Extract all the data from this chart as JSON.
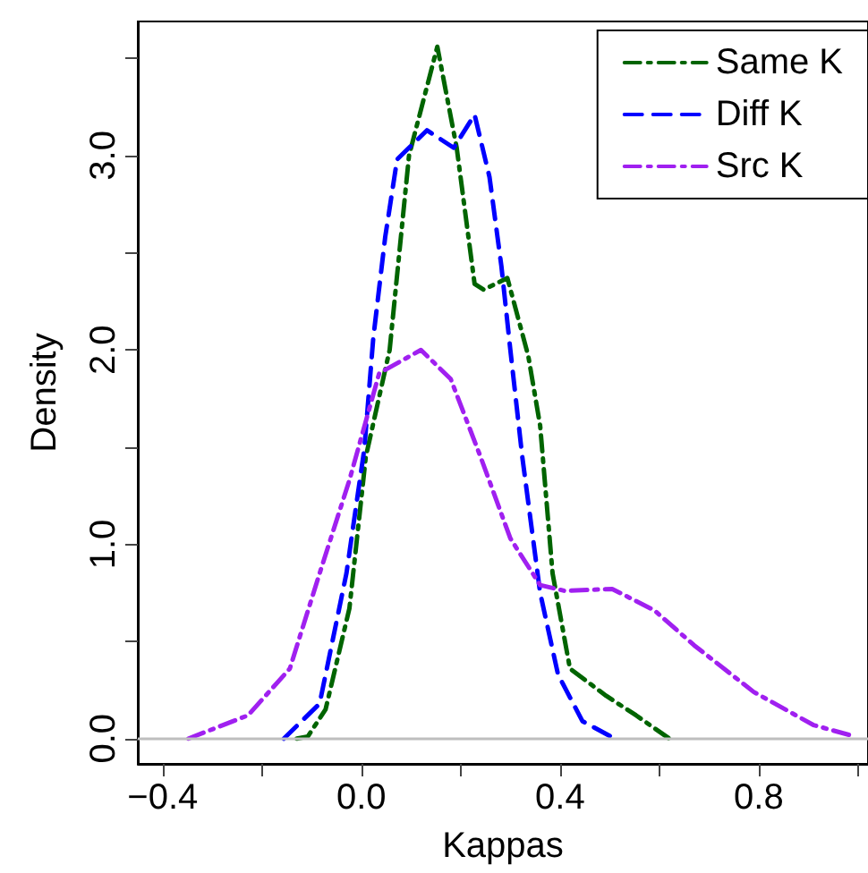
{
  "chart_data": {
    "type": "line",
    "xlabel": "Kappas",
    "ylabel": "Density",
    "xlim": [
      -0.45,
      1.02
    ],
    "ylim": [
      -0.13,
      3.69
    ],
    "xticks": [
      {
        "value": -0.4,
        "label": "−0.4"
      },
      {
        "value": -0.2,
        "label": null
      },
      {
        "value": 0,
        "label": "0.0"
      },
      {
        "value": 0.2,
        "label": null
      },
      0.4,
      {
        "value": 0.6,
        "label": null
      },
      0.8,
      {
        "value": 1.0,
        "label": null
      }
    ],
    "yticks": [
      {
        "value": 0,
        "label": "0.0"
      },
      {
        "value": 0.5,
        "label": null
      },
      {
        "value": 1,
        "label": "1.0"
      },
      {
        "value": 1.5,
        "label": null
      },
      {
        "value": 2,
        "label": "2.0"
      },
      {
        "value": 2.5,
        "label": null
      },
      {
        "value": 3,
        "label": "3.0"
      },
      {
        "value": 3.5,
        "label": null
      }
    ],
    "grid": false,
    "legend": "top right",
    "marker": "none",
    "ref_lines": [
      {
        "axis": "y",
        "value": 0,
        "color": "#bebebe",
        "line_style": "solid"
      }
    ],
    "series": [
      {
        "name": "Same K",
        "color": "#006400",
        "line_style": "dashdot",
        "x": [
          -0.13,
          -0.108,
          -0.072,
          -0.024,
          0.009,
          0.057,
          0.096,
          0.153,
          0.192,
          0.228,
          0.246,
          0.294,
          0.336,
          0.36,
          0.385,
          0.42,
          0.493,
          0.553,
          0.62
        ],
        "values": [
          0,
          0.01,
          0.15,
          0.67,
          1.45,
          2.0,
          3.0,
          3.56,
          3.04,
          2.34,
          2.31,
          2.37,
          1.97,
          1.61,
          0.85,
          0.36,
          0.22,
          0.12,
          0
        ]
      },
      {
        "name": "Diff K",
        "color": "#0000ff",
        "line_style": "dashed",
        "x": [
          -0.156,
          -0.084,
          -0.03,
          0.006,
          0.024,
          0.048,
          0.072,
          0.132,
          0.186,
          0.228,
          0.258,
          0.282,
          0.3,
          0.324,
          0.36,
          0.396,
          0.445,
          0.51
        ],
        "values": [
          0,
          0.18,
          0.85,
          1.49,
          2.06,
          2.58,
          2.98,
          3.13,
          3.04,
          3.21,
          2.89,
          2.43,
          2.0,
          1.45,
          0.75,
          0.33,
          0.09,
          0
        ]
      },
      {
        "name": "Src K",
        "color": "#a020f0",
        "line_style": "dashdot",
        "x": [
          -0.348,
          -0.228,
          -0.144,
          -0.084,
          -0.024,
          0.036,
          0.12,
          0.18,
          0.24,
          0.3,
          0.36,
          0.41,
          0.505,
          0.59,
          0.67,
          0.79,
          0.91,
          0.995
        ],
        "values": [
          0,
          0.12,
          0.36,
          0.85,
          1.33,
          1.88,
          2.0,
          1.85,
          1.45,
          1.03,
          0.79,
          0.76,
          0.77,
          0.66,
          0.48,
          0.24,
          0.07,
          0.01
        ]
      }
    ]
  }
}
